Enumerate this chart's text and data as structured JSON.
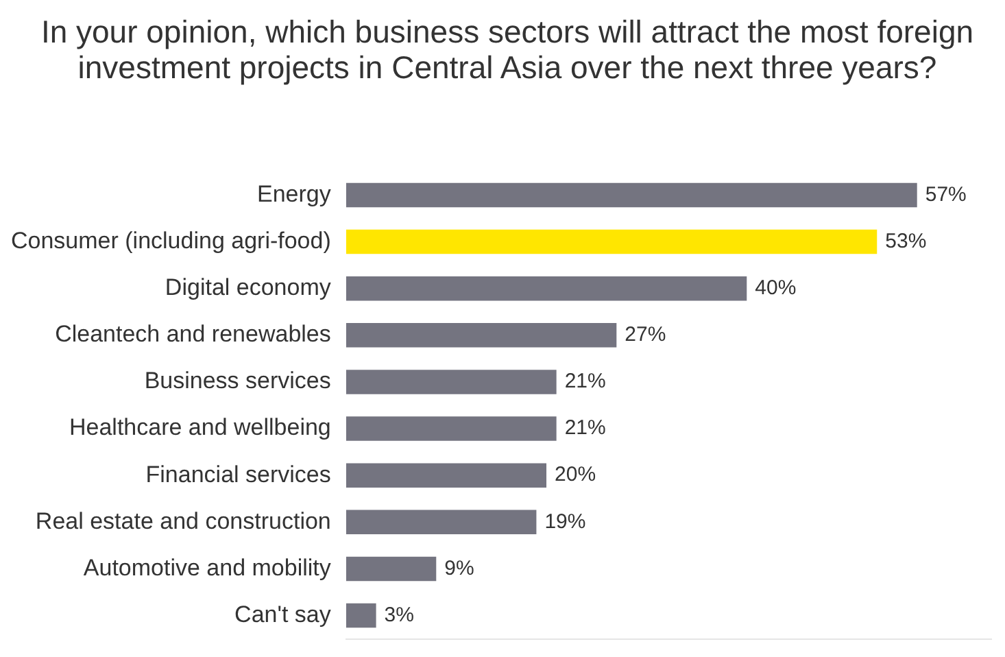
{
  "chart_data": {
    "type": "bar",
    "orientation": "horizontal",
    "title": "In your opinion, which business sectors will attract the most foreign investment projects in Central Asia over the next three years?",
    "categories": [
      "Energy",
      "Consumer (including agri-food)",
      "Digital economy",
      "Cleantech and renewables",
      "Business services",
      "Healthcare and wellbeing",
      "Financial services",
      "Real estate and construction",
      "Automotive and mobility",
      "Can't say"
    ],
    "values": [
      57,
      53,
      40,
      27,
      21,
      21,
      20,
      19,
      9,
      3
    ],
    "colors": [
      "#747480",
      "#ffe600",
      "#747480",
      "#747480",
      "#747480",
      "#747480",
      "#747480",
      "#747480",
      "#747480",
      "#747480"
    ],
    "value_labels": [
      "57%",
      "53%",
      "40%",
      "27%",
      "21%",
      "21%",
      "20%",
      "19%",
      "9%",
      "3%"
    ],
    "grid": false,
    "legend": false
  }
}
